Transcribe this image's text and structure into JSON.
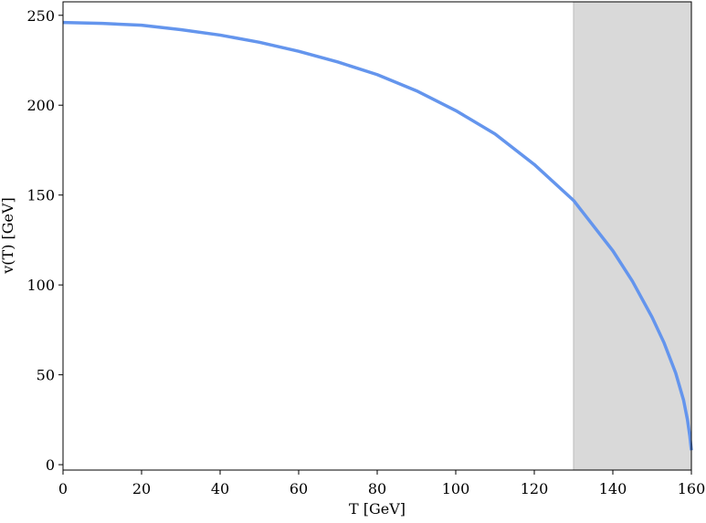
{
  "chart_data": {
    "type": "line",
    "xlabel": "T [GeV]",
    "ylabel": "v(T) [GeV]",
    "x": [
      0,
      10,
      20,
      30,
      40,
      50,
      60,
      70,
      80,
      90,
      100,
      110,
      120,
      130,
      140,
      145,
      150,
      153,
      156,
      158,
      159,
      159.6,
      160
    ],
    "series": [
      {
        "color": "#6495ed",
        "values": [
          246,
          245.5,
          244.5,
          242,
          239,
          235,
          230,
          224,
          217,
          208,
          197,
          184,
          167,
          147,
          119,
          102,
          82,
          68,
          51,
          36,
          25,
          16,
          8
        ]
      }
    ],
    "shaded_region": {
      "x": [
        130,
        160
      ],
      "color": "#d9d9d9"
    },
    "xlim": [
      0,
      160
    ],
    "ylim": [
      -3,
      257.5
    ],
    "xticks": [
      0,
      20,
      40,
      60,
      80,
      100,
      120,
      140,
      160
    ],
    "yticks": [
      0,
      50,
      100,
      150,
      200,
      250
    ]
  }
}
